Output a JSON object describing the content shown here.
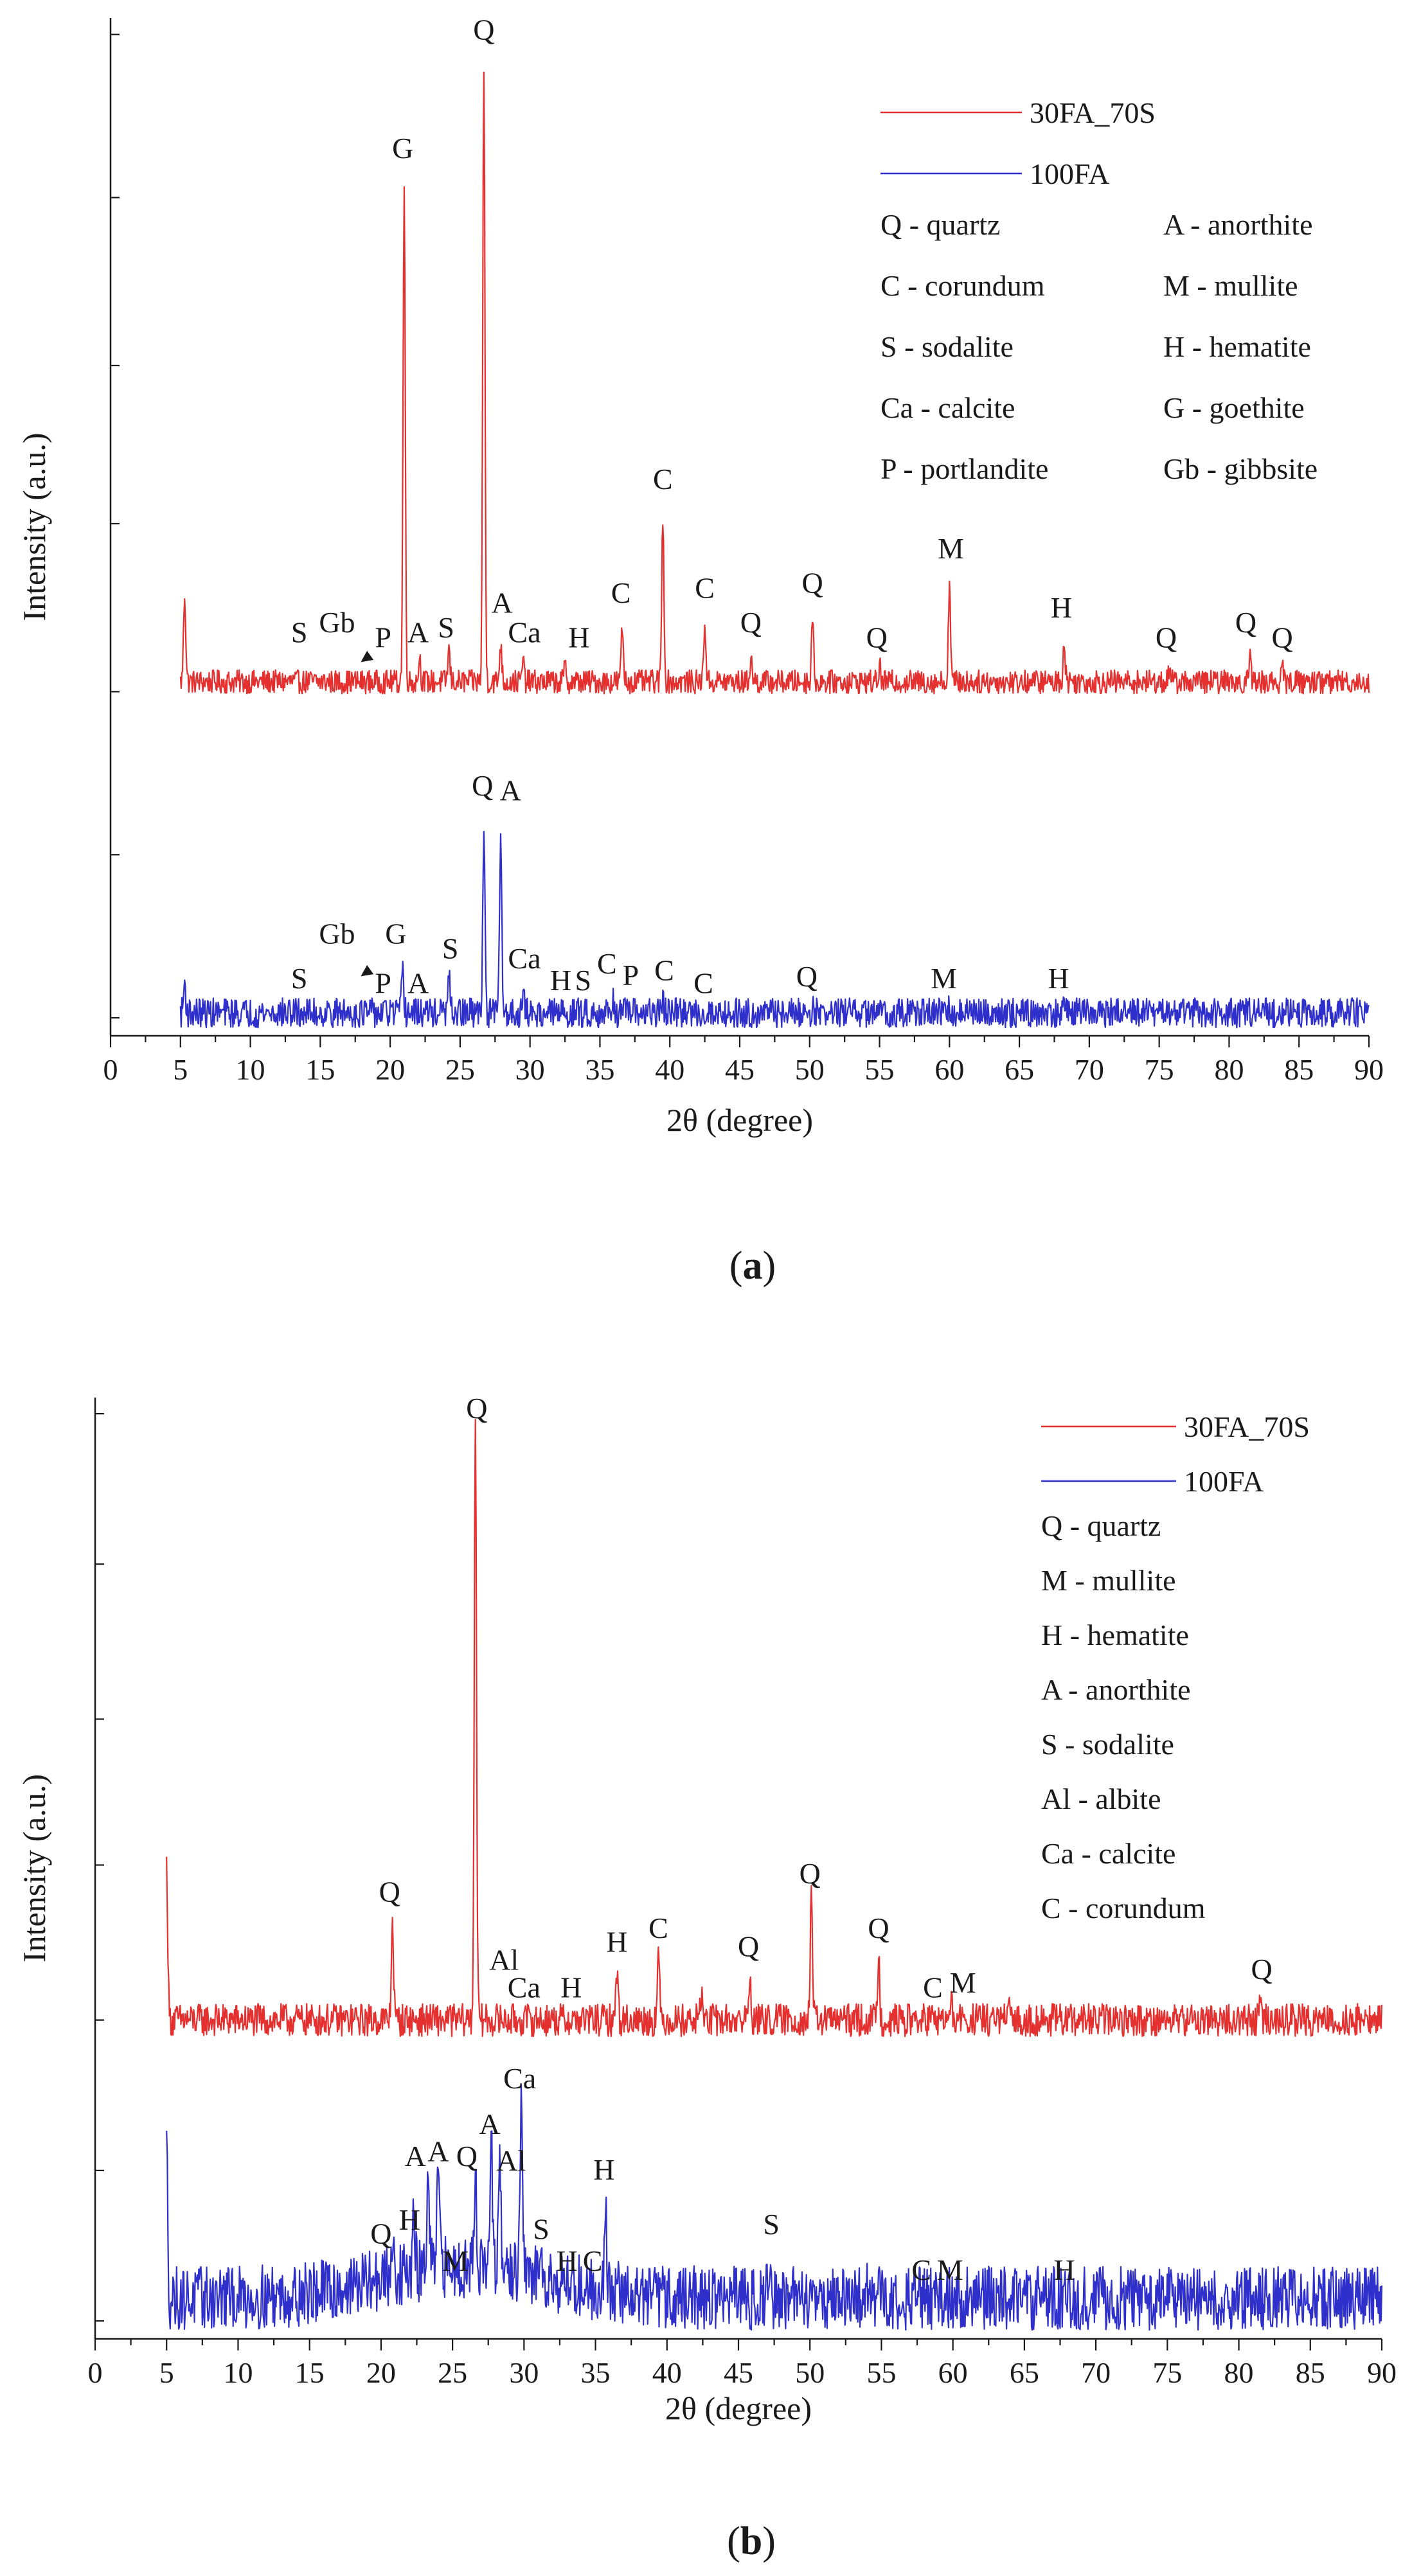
{
  "colors": {
    "sample_30FA_70S": "#e53030",
    "sample_100FA": "#2f2fcc",
    "axis": "#1a1a1a"
  },
  "chart_data": [
    {
      "type": "line",
      "panel": "a",
      "caption": {
        "open": "(",
        "letter": "a",
        "close": ")"
      },
      "xlabel": "2θ (degree)",
      "ylabel": "Intensity (a.u.)",
      "xlim": [
        0,
        90
      ],
      "ylim": [
        0,
        100
      ],
      "xticks": [
        "0",
        "5",
        "10",
        "15",
        "20",
        "25",
        "30",
        "35",
        "40",
        "45",
        "50",
        "55",
        "60",
        "65",
        "70",
        "75",
        "80",
        "85",
        "90"
      ],
      "legend": {
        "position": "top-right",
        "series": [
          "30FA_70S",
          "100FA"
        ],
        "phases": [
          "Q - quartz",
          "A - anorthite",
          "C - corundum",
          "M - mullite",
          "S - sodalite",
          "H - hematite",
          "Ca - calcite",
          "G - goethite",
          "P - portlandite",
          "Gb - gibbsite"
        ]
      },
      "series": [
        {
          "name": "30FA_70S",
          "baseline": 34,
          "noise_amp": 1.2,
          "peaks": [
            {
              "x": 5.3,
              "y": 43
            },
            {
              "x": 21.0,
              "y": 84
            },
            {
              "x": 22.1,
              "y": 36.5
            },
            {
              "x": 24.2,
              "y": 37.2
            },
            {
              "x": 26.7,
              "y": 96
            },
            {
              "x": 27.9,
              "y": 38
            },
            {
              "x": 29.5,
              "y": 36
            },
            {
              "x": 32.5,
              "y": 35.5
            },
            {
              "x": 36.6,
              "y": 39.5
            },
            {
              "x": 39.5,
              "y": 51
            },
            {
              "x": 42.5,
              "y": 40
            },
            {
              "x": 45.8,
              "y": 36.5
            },
            {
              "x": 50.2,
              "y": 40.5
            },
            {
              "x": 55.0,
              "y": 35.5
            },
            {
              "x": 60.0,
              "y": 44
            },
            {
              "x": 68.2,
              "y": 38
            },
            {
              "x": 75.7,
              "y": 35.2
            },
            {
              "x": 81.5,
              "y": 36.5
            },
            {
              "x": 83.8,
              "y": 35.2
            }
          ],
          "labels": [
            {
              "text": "S",
              "x": 13.5,
              "y": 38
            },
            {
              "text": "Gb",
              "x": 16.2,
              "y": 39
            },
            {
              "text": "P",
              "x": 19.5,
              "y": 37.5
            },
            {
              "text": "A",
              "x": 22.0,
              "y": 38
            },
            {
              "text": "S",
              "x": 24.0,
              "y": 38.5
            },
            {
              "text": "G",
              "x": 20.9,
              "y": 87
            },
            {
              "text": "Q",
              "x": 26.7,
              "y": 99
            },
            {
              "text": "A",
              "x": 28.0,
              "y": 41
            },
            {
              "text": "Ca",
              "x": 29.6,
              "y": 38
            },
            {
              "text": "H",
              "x": 33.5,
              "y": 37.5
            },
            {
              "text": "C",
              "x": 36.5,
              "y": 42
            },
            {
              "text": "C",
              "x": 39.5,
              "y": 53.5
            },
            {
              "text": "C",
              "x": 42.5,
              "y": 42.5
            },
            {
              "text": "Q",
              "x": 45.8,
              "y": 39
            },
            {
              "text": "Q",
              "x": 50.2,
              "y": 43
            },
            {
              "text": "Q",
              "x": 54.8,
              "y": 37.5
            },
            {
              "text": "M",
              "x": 60.1,
              "y": 46.5
            },
            {
              "text": "H",
              "x": 68.0,
              "y": 40.5
            },
            {
              "text": "Q",
              "x": 75.5,
              "y": 37.5
            },
            {
              "text": "Q",
              "x": 81.2,
              "y": 39
            },
            {
              "text": "Q",
              "x": 83.8,
              "y": 37.5
            }
          ],
          "arrow": {
            "from_x": 18.7,
            "from_y": 36.8,
            "to_x": 17.9,
            "to_y": 36
          }
        },
        {
          "name": "100FA",
          "baseline": 0.5,
          "noise_amp": 1.5,
          "peaks": [
            {
              "x": 5.3,
              "y": 3.5
            },
            {
              "x": 20.9,
              "y": 4.5
            },
            {
              "x": 24.2,
              "y": 4.0
            },
            {
              "x": 26.7,
              "y": 19.5
            },
            {
              "x": 27.9,
              "y": 18.5
            },
            {
              "x": 29.5,
              "y": 2.5
            },
            {
              "x": 35.9,
              "y": 2.0
            },
            {
              "x": 39.5,
              "y": 1.8
            },
            {
              "x": 50.2,
              "y": 1.2
            },
            {
              "x": 60.0,
              "y": 1.0
            },
            {
              "x": 68.2,
              "y": 0.9
            }
          ],
          "labels": [
            {
              "text": "S",
              "x": 13.5,
              "y": 3
            },
            {
              "text": "Gb",
              "x": 16.2,
              "y": 7.5
            },
            {
              "text": "G",
              "x": 20.4,
              "y": 7.5
            },
            {
              "text": "P",
              "x": 19.5,
              "y": 2.5
            },
            {
              "text": "A",
              "x": 22.0,
              "y": 2.5
            },
            {
              "text": "S",
              "x": 24.3,
              "y": 6
            },
            {
              "text": "Q",
              "x": 26.6,
              "y": 22.5
            },
            {
              "text": "A",
              "x": 28.6,
              "y": 22
            },
            {
              "text": "Ca",
              "x": 29.6,
              "y": 5
            },
            {
              "text": "H",
              "x": 32.2,
              "y": 2.8
            },
            {
              "text": "S",
              "x": 33.8,
              "y": 2.8
            },
            {
              "text": "C",
              "x": 35.5,
              "y": 4.5
            },
            {
              "text": "P",
              "x": 37.2,
              "y": 3.3
            },
            {
              "text": "C",
              "x": 39.6,
              "y": 3.8
            },
            {
              "text": "C",
              "x": 42.4,
              "y": 2.5
            },
            {
              "text": "Q",
              "x": 49.8,
              "y": 3.2
            },
            {
              "text": "M",
              "x": 59.6,
              "y": 3
            },
            {
              "text": "H",
              "x": 67.8,
              "y": 3
            }
          ],
          "arrow": {
            "from_x": 18.7,
            "from_y": 5,
            "to_x": 17.9,
            "to_y": 4.2
          }
        }
      ]
    },
    {
      "type": "line",
      "panel": "b",
      "caption": {
        "open": "(",
        "letter": "b",
        "close": ")"
      },
      "xlabel": "2θ (degree)",
      "ylabel": "Intensity (a.u.)",
      "xlim": [
        0,
        90
      ],
      "ylim": [
        0,
        100
      ],
      "xticks": [
        "0",
        "5",
        "10",
        "15",
        "20",
        "25",
        "30",
        "35",
        "40",
        "45",
        "50",
        "55",
        "60",
        "65",
        "70",
        "75",
        "80",
        "85",
        "90"
      ],
      "legend": {
        "position": "top-right",
        "series": [
          "30FA_70S",
          "100FA"
        ],
        "phases": [
          "Q - quartz",
          "M - mullite",
          "H - hematite",
          "A - anorthite",
          "S - sodalite",
          "Al - albite",
          "Ca - calcite",
          "C - corundum"
        ]
      },
      "series": [
        {
          "name": "30FA_70S",
          "baseline": 33,
          "noise_amp": 1.8,
          "peaks": [
            {
              "x": 5.0,
              "y": 50
            },
            {
              "x": 20.8,
              "y": 44
            },
            {
              "x": 26.6,
              "y": 100
            },
            {
              "x": 36.5,
              "y": 38.5
            },
            {
              "x": 39.4,
              "y": 40
            },
            {
              "x": 42.4,
              "y": 36
            },
            {
              "x": 45.8,
              "y": 37.5
            },
            {
              "x": 50.1,
              "y": 46
            },
            {
              "x": 54.8,
              "y": 40
            },
            {
              "x": 59.9,
              "y": 34.5
            },
            {
              "x": 64.0,
              "y": 34
            },
            {
              "x": 81.5,
              "y": 35
            }
          ],
          "labels": [
            {
              "text": "Q",
              "x": 26.7,
              "y": 99
            },
            {
              "text": "Q",
              "x": 20.6,
              "y": 46
            },
            {
              "text": "Al",
              "x": 28.6,
              "y": 38.5
            },
            {
              "text": "Ca",
              "x": 30.0,
              "y": 35.5
            },
            {
              "text": "H",
              "x": 33.3,
              "y": 35.5
            },
            {
              "text": "H",
              "x": 36.5,
              "y": 40.5
            },
            {
              "text": "C",
              "x": 39.4,
              "y": 42
            },
            {
              "text": "Q",
              "x": 45.7,
              "y": 40
            },
            {
              "text": "Q",
              "x": 50.0,
              "y": 48
            },
            {
              "text": "Q",
              "x": 54.8,
              "y": 42
            },
            {
              "text": "C",
              "x": 58.6,
              "y": 35.5
            },
            {
              "text": "M",
              "x": 60.7,
              "y": 36
            },
            {
              "text": "Q",
              "x": 81.6,
              "y": 37.5
            }
          ]
        },
        {
          "name": "100FA",
          "baseline": 2.5,
          "noise_amp": 3.5,
          "peaks": [
            {
              "x": 5.0,
              "y": 19
            },
            {
              "x": 20.9,
              "y": 8
            },
            {
              "x": 22.3,
              "y": 8.5
            },
            {
              "x": 23.3,
              "y": 13.5
            },
            {
              "x": 24.0,
              "y": 14.5
            },
            {
              "x": 26.6,
              "y": 14.5
            },
            {
              "x": 27.7,
              "y": 17
            },
            {
              "x": 28.3,
              "y": 14
            },
            {
              "x": 29.8,
              "y": 22
            },
            {
              "x": 31.2,
              "y": 8
            },
            {
              "x": 35.7,
              "y": 13
            },
            {
              "x": 47.1,
              "y": 6
            },
            {
              "x": 50.2,
              "y": 4.5
            },
            {
              "x": 54.1,
              "y": 4.5
            }
          ],
          "labels": [
            {
              "text": "Ca",
              "x": 29.7,
              "y": 25.5
            },
            {
              "text": "A",
              "x": 27.6,
              "y": 20.5
            },
            {
              "text": "A",
              "x": 22.4,
              "y": 17
            },
            {
              "text": "A",
              "x": 24.0,
              "y": 17.5
            },
            {
              "text": "Q",
              "x": 26.0,
              "y": 17
            },
            {
              "text": "Al",
              "x": 29.1,
              "y": 16.5
            },
            {
              "text": "H",
              "x": 35.6,
              "y": 15.5
            },
            {
              "text": "Q",
              "x": 20.0,
              "y": 8.5
            },
            {
              "text": "H",
              "x": 22.0,
              "y": 10
            },
            {
              "text": "M",
              "x": 25.2,
              "y": 5.5
            },
            {
              "text": "S",
              "x": 31.2,
              "y": 9
            },
            {
              "text": "H",
              "x": 33.0,
              "y": 5.5
            },
            {
              "text": "C",
              "x": 34.8,
              "y": 5.5
            },
            {
              "text": "S",
              "x": 47.3,
              "y": 9.5
            },
            {
              "text": "C",
              "x": 57.8,
              "y": 4.5
            },
            {
              "text": "M",
              "x": 59.8,
              "y": 4.5
            },
            {
              "text": "H",
              "x": 67.8,
              "y": 4.5
            }
          ]
        }
      ]
    }
  ]
}
